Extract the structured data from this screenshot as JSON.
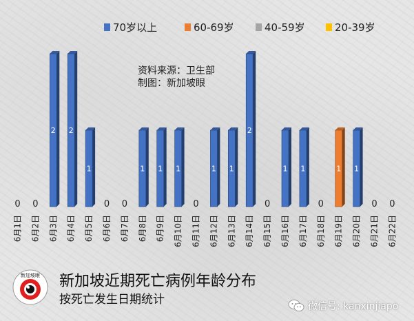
{
  "chart_data": {
    "type": "bar",
    "title": "新加坡近期死亡病例年龄分布",
    "subtitle": "按死亡发生日期统计",
    "source_lines": [
      "资料来源：卫生部",
      "制图：新加坡眼"
    ],
    "categories": [
      "6月1日",
      "6月2日",
      "6月3日",
      "6月4日",
      "6月5日",
      "6月6日",
      "6月7日",
      "6月8日",
      "6月9日",
      "6月10日",
      "6月11日",
      "6月12日",
      "6月13日",
      "6月14日",
      "6月15日",
      "6月16日",
      "6月17日",
      "6月18日",
      "6月19日",
      "6月20日",
      "6月21日",
      "6月22日"
    ],
    "series": [
      {
        "name": "70岁以上",
        "color": "#4472C4",
        "values": [
          0,
          0,
          2,
          2,
          1,
          0,
          0,
          1,
          1,
          1,
          0,
          1,
          1,
          2,
          0,
          1,
          1,
          0,
          0,
          1,
          0,
          0
        ]
      },
      {
        "name": "60-69岁",
        "color": "#ED7D31",
        "values": [
          0,
          0,
          0,
          0,
          0,
          0,
          0,
          0,
          0,
          0,
          0,
          0,
          0,
          0,
          0,
          0,
          0,
          0,
          1,
          0,
          0,
          0
        ]
      },
      {
        "name": "40-59岁",
        "color": "#A5A5A5",
        "values": [
          0,
          0,
          0,
          0,
          0,
          0,
          0,
          0,
          0,
          0,
          0,
          0,
          0,
          0,
          0,
          0,
          0,
          0,
          0,
          0,
          0,
          0
        ]
      },
      {
        "name": "20-39岁",
        "color": "#FFC000",
        "values": [
          0,
          0,
          0,
          0,
          0,
          0,
          0,
          0,
          0,
          0,
          0,
          0,
          0,
          0,
          0,
          0,
          0,
          0,
          0,
          0,
          0,
          0
        ]
      }
    ],
    "totals": [
      0,
      0,
      2,
      2,
      1,
      0,
      0,
      1,
      1,
      1,
      0,
      1,
      1,
      2,
      0,
      1,
      1,
      0,
      1,
      1,
      0,
      0
    ],
    "ylim": [
      0,
      2
    ],
    "grid": false,
    "legend_position": "top-right"
  },
  "logo": {
    "text": "新加坡眼"
  },
  "watermark": {
    "text": "微信号: kanxinjiapo",
    "icon": "wechat-icon"
  }
}
